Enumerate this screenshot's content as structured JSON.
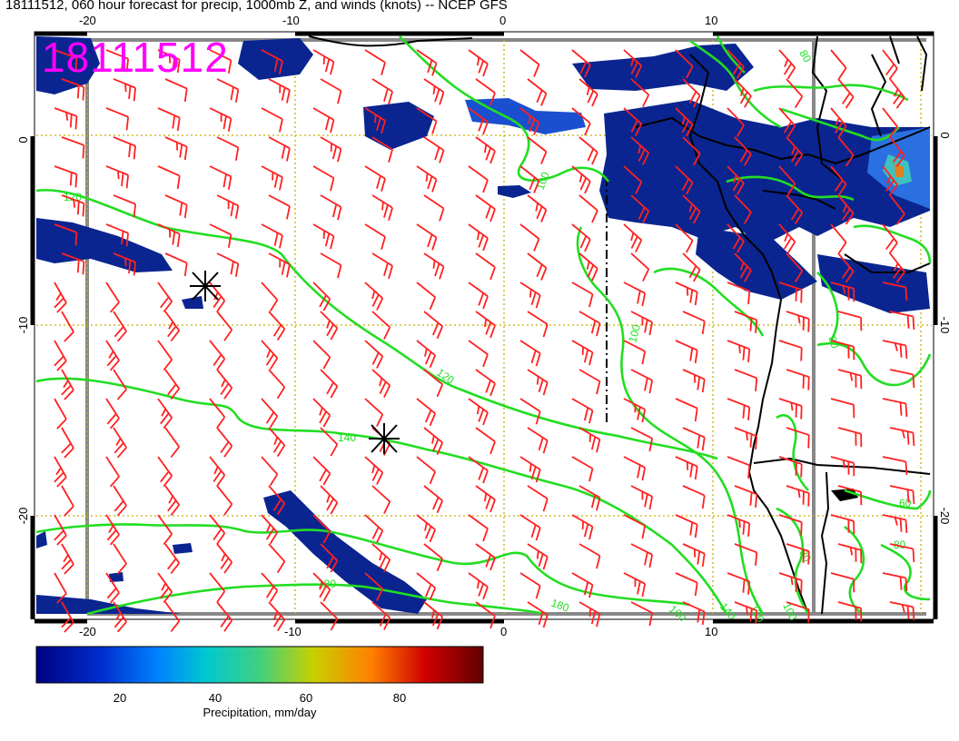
{
  "header": {
    "title": "18111512, 060 hour forecast for precip, 1000mb Z, and winds (knots) -- NCEP GFS",
    "stamp": "18111512"
  },
  "axes": {
    "top_ticks": [
      "-20",
      "-10",
      "0",
      "10"
    ],
    "bottom_ticks": [
      "-20",
      "-10",
      "0",
      "10"
    ],
    "left_ticks": [
      "0",
      "-10",
      "-20"
    ],
    "right_ticks": [
      "0",
      "-10",
      "-20"
    ]
  },
  "contours": {
    "color": "#22dd22",
    "labels": [
      "120",
      "100",
      "120",
      "140",
      "100",
      "180",
      "160",
      "140",
      "120",
      "100",
      "80",
      "60",
      "80",
      "80",
      "180",
      "80"
    ]
  },
  "colorbar": {
    "ticks": [
      "20",
      "40",
      "60",
      "80"
    ],
    "label": "Precipitation, mm/day",
    "colors": [
      "#000080",
      "#0030d0",
      "#0080ff",
      "#00c8d0",
      "#40d080",
      "#c8d000",
      "#ff8000",
      "#d00000",
      "#600000"
    ]
  },
  "colors": {
    "wind_barbs": "#ff2020",
    "gridlines": "#c8b000",
    "precip_dark": "#0a2590",
    "stamp": "#ff00ff"
  }
}
